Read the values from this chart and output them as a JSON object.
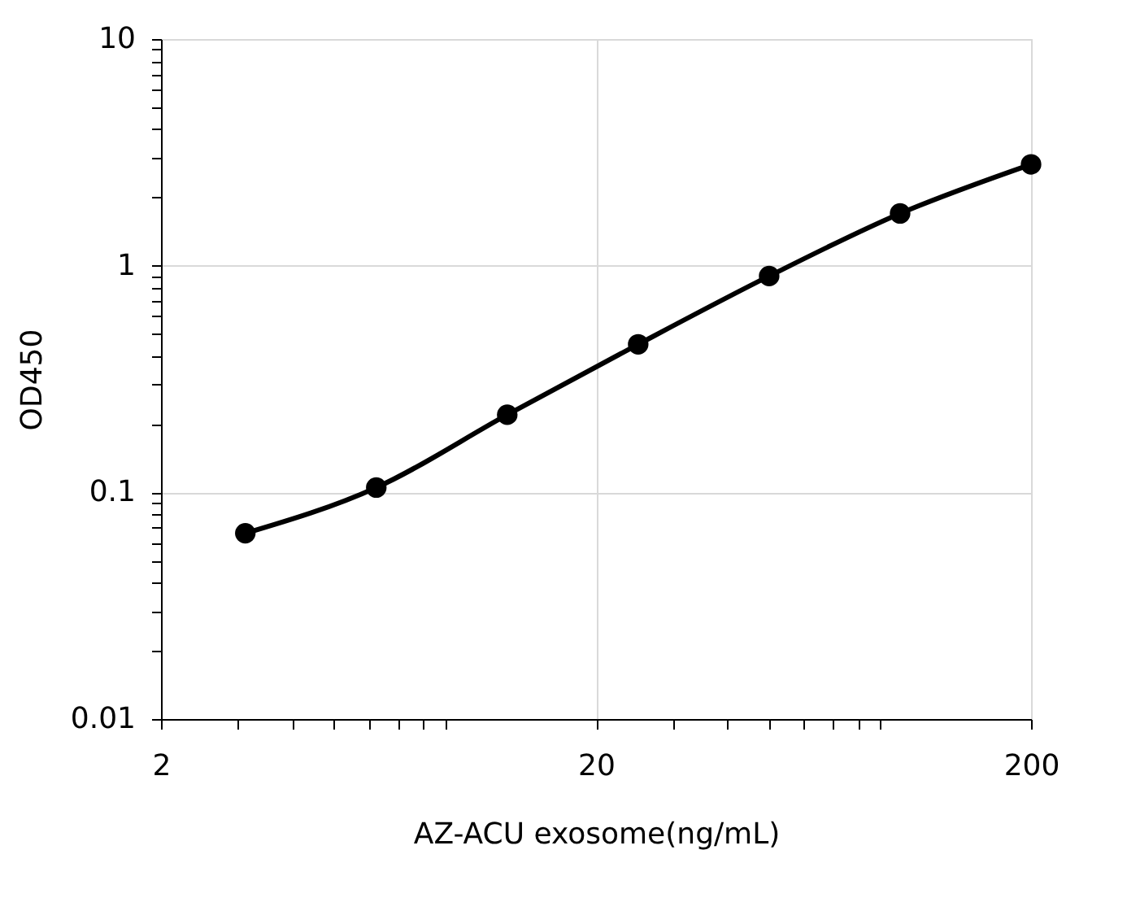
{
  "chart_data": {
    "type": "line",
    "xlabel": "AZ-ACU exosome(ng/mL)",
    "ylabel": "OD450",
    "x": [
      3.125,
      6.25,
      12.5,
      25,
      50,
      100,
      200
    ],
    "series": [
      {
        "color": "#000000",
        "values": [
          0.066,
          0.105,
          0.22,
          0.45,
          0.9,
          1.7,
          2.8
        ]
      }
    ],
    "log": "xy",
    "xlim": [
      2,
      200
    ],
    "ylim": [
      0.01,
      10
    ],
    "xticks": [
      2,
      {
        "value": 3,
        "label": null
      },
      {
        "value": 4,
        "label": null
      },
      {
        "value": 5,
        "label": null
      },
      {
        "value": 6,
        "label": null
      },
      {
        "value": 7,
        "label": null
      },
      {
        "value": 8,
        "label": null
      },
      {
        "value": 9,
        "label": null
      },
      20,
      {
        "value": 30,
        "label": null
      },
      {
        "value": 40,
        "label": null
      },
      {
        "value": 50,
        "label": null
      },
      {
        "value": 60,
        "label": null
      },
      {
        "value": 70,
        "label": null
      },
      {
        "value": 80,
        "label": null
      },
      {
        "value": 90,
        "label": null
      },
      200
    ],
    "yticks": [
      0.01,
      {
        "value": 0.02,
        "label": null
      },
      {
        "value": 0.03,
        "label": null
      },
      {
        "value": 0.04,
        "label": null
      },
      {
        "value": 0.05,
        "label": null
      },
      {
        "value": 0.06,
        "label": null
      },
      {
        "value": 0.07,
        "label": null
      },
      {
        "value": 0.08,
        "label": null
      },
      {
        "value": 0.09,
        "label": null
      },
      0.1,
      {
        "value": 0.2,
        "label": null
      },
      {
        "value": 0.3,
        "label": null
      },
      {
        "value": 0.4,
        "label": null
      },
      {
        "value": 0.5,
        "label": null
      },
      {
        "value": 0.6,
        "label": null
      },
      {
        "value": 0.7,
        "label": null
      },
      {
        "value": 0.8,
        "label": null
      },
      {
        "value": 0.9,
        "label": null
      },
      1,
      {
        "value": 2,
        "label": null
      },
      {
        "value": 3,
        "label": null
      },
      {
        "value": 4,
        "label": null
      },
      {
        "value": 5,
        "label": null
      },
      {
        "value": 6,
        "label": null
      },
      {
        "value": 7,
        "label": null
      },
      {
        "value": 8,
        "label": null
      },
      {
        "value": 9,
        "label": null
      },
      10
    ],
    "grid": true,
    "marker": "circle",
    "line_style": "solid"
  }
}
